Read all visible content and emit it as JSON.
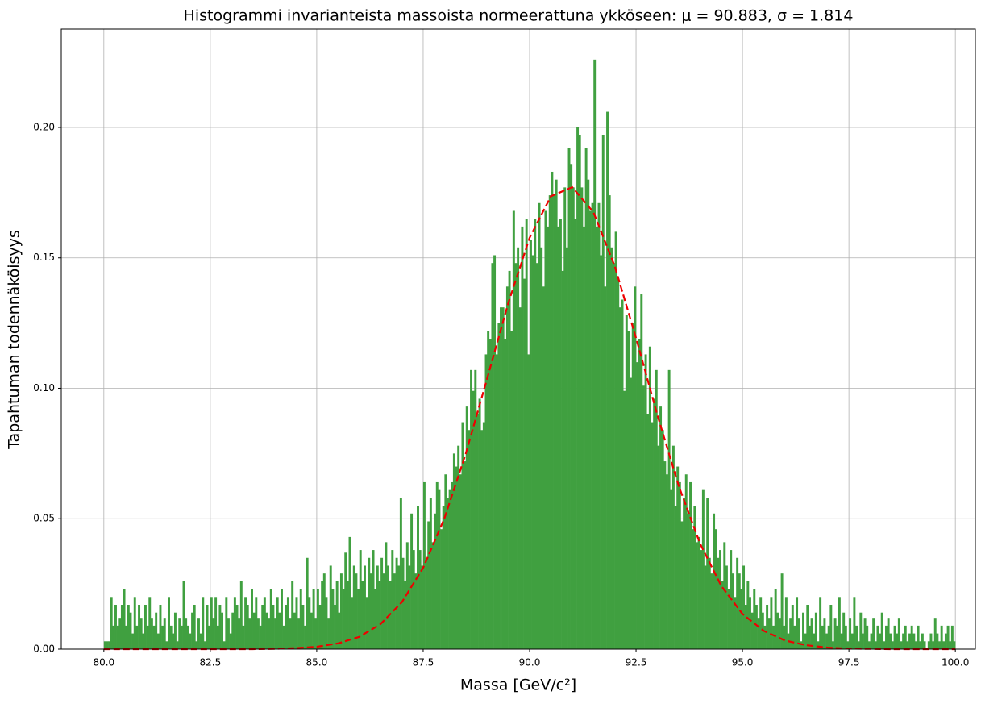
{
  "chart_data": {
    "type": "histogram",
    "title": "Histogrammi invarianteista massoista normeerattuna ykköseen: μ = 90.883, σ = 1.814",
    "xlabel": "Massa [GeV/c²]",
    "ylabel": "Tapahtuman todennäköisyys",
    "color": "#40a040",
    "grid": true,
    "xlim": [
      79.0,
      100.47
    ],
    "ylim": [
      0,
      0.2377
    ],
    "xticks": [
      {
        "value": 80,
        "label": "80.0"
      },
      {
        "value": 82.5,
        "label": "82.5"
      },
      {
        "value": 85,
        "label": "85.0"
      },
      {
        "value": 87.5,
        "label": "87.5"
      },
      {
        "value": 90,
        "label": "90.0"
      },
      {
        "value": 92.5,
        "label": "92.5"
      },
      {
        "value": 95,
        "label": "95.0"
      },
      {
        "value": 97.5,
        "label": "97.5"
      },
      {
        "value": 100,
        "label": "100.0"
      }
    ],
    "yticks": [
      {
        "value": 0,
        "label": "0.00"
      },
      {
        "value": 0.05,
        "label": "0.05"
      },
      {
        "value": 0.1,
        "label": "0.10"
      },
      {
        "value": 0.15,
        "label": "0.15"
      },
      {
        "value": 0.2,
        "label": "0.20"
      }
    ],
    "bins": [
      80,
      80.05,
      80.1,
      80.15,
      80.2,
      80.25,
      80.3,
      80.35,
      80.4,
      80.45,
      80.5,
      80.55,
      80.6,
      80.65,
      80.7,
      80.75,
      80.8,
      80.85,
      80.9,
      80.95,
      81,
      81.05,
      81.1,
      81.15,
      81.2,
      81.25,
      81.3,
      81.35,
      81.4,
      81.45,
      81.5,
      81.55,
      81.6,
      81.65,
      81.7,
      81.75,
      81.8,
      81.85,
      81.9,
      81.95,
      82,
      82.05,
      82.1,
      82.15,
      82.2,
      82.25,
      82.3,
      82.35,
      82.4,
      82.45,
      82.5,
      82.55,
      82.6,
      82.65,
      82.7,
      82.75,
      82.8,
      82.85,
      82.9,
      82.95,
      83,
      83.05,
      83.1,
      83.15,
      83.2,
      83.25,
      83.3,
      83.35,
      83.4,
      83.45,
      83.5,
      83.55,
      83.6,
      83.65,
      83.7,
      83.75,
      83.8,
      83.85,
      83.9,
      83.95,
      84,
      84.05,
      84.1,
      84.15,
      84.2,
      84.25,
      84.3,
      84.35,
      84.4,
      84.45,
      84.5,
      84.55,
      84.6,
      84.65,
      84.7,
      84.75,
      84.8,
      84.85,
      84.9,
      84.95,
      85,
      85.05,
      85.1,
      85.15,
      85.2,
      85.25,
      85.3,
      85.35,
      85.4,
      85.45,
      85.5,
      85.55,
      85.6,
      85.65,
      85.7,
      85.75,
      85.8,
      85.85,
      85.9,
      85.95,
      86,
      86.05,
      86.1,
      86.15,
      86.2,
      86.25,
      86.3,
      86.35,
      86.4,
      86.45,
      86.5,
      86.55,
      86.6,
      86.65,
      86.7,
      86.75,
      86.8,
      86.85,
      86.9,
      86.95,
      87,
      87.05,
      87.1,
      87.15,
      87.2,
      87.25,
      87.3,
      87.35,
      87.4,
      87.45,
      87.5,
      87.55,
      87.6,
      87.65,
      87.7,
      87.75,
      87.8,
      87.85,
      87.9,
      87.95,
      88,
      88.05,
      88.1,
      88.15,
      88.2,
      88.25,
      88.3,
      88.35,
      88.4,
      88.45,
      88.5,
      88.55,
      88.6,
      88.65,
      88.7,
      88.75,
      88.8,
      88.85,
      88.9,
      88.95,
      89,
      89.05,
      89.1,
      89.15,
      89.2,
      89.25,
      89.3,
      89.35,
      89.4,
      89.45,
      89.5,
      89.55,
      89.6,
      89.65,
      89.7,
      89.75,
      89.8,
      89.85,
      89.9,
      89.95,
      90,
      90.05,
      90.1,
      90.15,
      90.2,
      90.25,
      90.3,
      90.35,
      90.4,
      90.45,
      90.5,
      90.55,
      90.6,
      90.65,
      90.7,
      90.75,
      90.8,
      90.85,
      90.9,
      90.95,
      91,
      91.05,
      91.1,
      91.15,
      91.2,
      91.25,
      91.3,
      91.35,
      91.4,
      91.45,
      91.5,
      91.55,
      91.6,
      91.65,
      91.7,
      91.75,
      91.8,
      91.85,
      91.9,
      91.95,
      92,
      92.05,
      92.1,
      92.15,
      92.2,
      92.25,
      92.3,
      92.35,
      92.4,
      92.45,
      92.5,
      92.55,
      92.6,
      92.65,
      92.7,
      92.75,
      92.8,
      92.85,
      92.9,
      92.95,
      93,
      93.05,
      93.1,
      93.15,
      93.2,
      93.25,
      93.3,
      93.35,
      93.4,
      93.45,
      93.5,
      93.55,
      93.6,
      93.65,
      93.7,
      93.75,
      93.8,
      93.85,
      93.9,
      93.95,
      94,
      94.05,
      94.1,
      94.15,
      94.2,
      94.25,
      94.3,
      94.35,
      94.4,
      94.45,
      94.5,
      94.55,
      94.6,
      94.65,
      94.7,
      94.75,
      94.8,
      94.85,
      94.9,
      94.95,
      95,
      95.05,
      95.1,
      95.15,
      95.2,
      95.25,
      95.3,
      95.35,
      95.4,
      95.45,
      95.5,
      95.55,
      95.6,
      95.65,
      95.7,
      95.75,
      95.8,
      95.85,
      95.9,
      95.95,
      96,
      96.05,
      96.1,
      96.15,
      96.2,
      96.25,
      96.3,
      96.35,
      96.4,
      96.45,
      96.5,
      96.55,
      96.6,
      96.65,
      96.7,
      96.75,
      96.8,
      96.85,
      96.9,
      96.95,
      97,
      97.05,
      97.1,
      97.15,
      97.2,
      97.25,
      97.3,
      97.35,
      97.4,
      97.45,
      97.5,
      97.55,
      97.6,
      97.65,
      97.7,
      97.75,
      97.8,
      97.85,
      97.9,
      97.95,
      98,
      98.05,
      98.1,
      98.15,
      98.2,
      98.25,
      98.3,
      98.35,
      98.4,
      98.45,
      98.5,
      98.55,
      98.6,
      98.65,
      98.7,
      98.75,
      98.8,
      98.85,
      98.9,
      98.95,
      99,
      99.05,
      99.1,
      99.15,
      99.2,
      99.25,
      99.3,
      99.35,
      99.4,
      99.45,
      99.5,
      99.55,
      99.6,
      99.65,
      99.7,
      99.75,
      99.8,
      99.85,
      99.9,
      99.95,
      100
    ],
    "values": [
      0.003,
      0.003,
      0.003,
      0.02,
      0.009,
      0.017,
      0.009,
      0.012,
      0.017,
      0.023,
      0.009,
      0.017,
      0.014,
      0.006,
      0.02,
      0.009,
      0.017,
      0.012,
      0.006,
      0.017,
      0.009,
      0.02,
      0.012,
      0.009,
      0.014,
      0.006,
      0.017,
      0.009,
      0.012,
      0.003,
      0.02,
      0.009,
      0.006,
      0.014,
      0.003,
      0.012,
      0.009,
      0.026,
      0.012,
      0.009,
      0.006,
      0.014,
      0.017,
      0.003,
      0.012,
      0.006,
      0.02,
      0.003,
      0.017,
      0.009,
      0.02,
      0.012,
      0.02,
      0.009,
      0.017,
      0.014,
      0.003,
      0.02,
      0.012,
      0.006,
      0.014,
      0.02,
      0.017,
      0.012,
      0.026,
      0.009,
      0.02,
      0.017,
      0.012,
      0.023,
      0.014,
      0.02,
      0.012,
      0.009,
      0.017,
      0.02,
      0.014,
      0.012,
      0.023,
      0.017,
      0.012,
      0.02,
      0.014,
      0.023,
      0.009,
      0.017,
      0.02,
      0.012,
      0.026,
      0.014,
      0.02,
      0.012,
      0.023,
      0.017,
      0.009,
      0.035,
      0.02,
      0.014,
      0.023,
      0.012,
      0.023,
      0.017,
      0.026,
      0.029,
      0.02,
      0.012,
      0.032,
      0.023,
      0.017,
      0.026,
      0.014,
      0.029,
      0.023,
      0.037,
      0.026,
      0.043,
      0.02,
      0.032,
      0.029,
      0.023,
      0.038,
      0.026,
      0.032,
      0.02,
      0.035,
      0.029,
      0.038,
      0.023,
      0.032,
      0.026,
      0.035,
      0.029,
      0.041,
      0.032,
      0.026,
      0.038,
      0.029,
      0.035,
      0.032,
      0.058,
      0.035,
      0.026,
      0.041,
      0.032,
      0.052,
      0.038,
      0.029,
      0.055,
      0.038,
      0.032,
      0.064,
      0.035,
      0.049,
      0.058,
      0.041,
      0.052,
      0.064,
      0.061,
      0.046,
      0.055,
      0.067,
      0.058,
      0.061,
      0.064,
      0.075,
      0.07,
      0.078,
      0.067,
      0.087,
      0.072,
      0.093,
      0.084,
      0.107,
      0.099,
      0.107,
      0.09,
      0.096,
      0.084,
      0.087,
      0.113,
      0.122,
      0.119,
      0.148,
      0.151,
      0.113,
      0.125,
      0.131,
      0.131,
      0.119,
      0.139,
      0.145,
      0.122,
      0.168,
      0.148,
      0.154,
      0.131,
      0.162,
      0.142,
      0.165,
      0.113,
      0.157,
      0.151,
      0.165,
      0.148,
      0.171,
      0.154,
      0.139,
      0.168,
      0.162,
      0.174,
      0.183,
      0.174,
      0.18,
      0.162,
      0.165,
      0.145,
      0.177,
      0.154,
      0.192,
      0.186,
      0.177,
      0.165,
      0.2,
      0.197,
      0.177,
      0.162,
      0.192,
      0.18,
      0.168,
      0.171,
      0.226,
      0.162,
      0.171,
      0.151,
      0.197,
      0.139,
      0.206,
      0.174,
      0.154,
      0.148,
      0.16,
      0.142,
      0.131,
      0.134,
      0.099,
      0.128,
      0.122,
      0.104,
      0.125,
      0.139,
      0.11,
      0.119,
      0.136,
      0.101,
      0.113,
      0.09,
      0.116,
      0.087,
      0.096,
      0.107,
      0.078,
      0.093,
      0.084,
      0.072,
      0.067,
      0.107,
      0.061,
      0.078,
      0.055,
      0.07,
      0.064,
      0.049,
      0.058,
      0.067,
      0.052,
      0.064,
      0.046,
      0.055,
      0.041,
      0.043,
      0.038,
      0.061,
      0.032,
      0.058,
      0.035,
      0.029,
      0.052,
      0.046,
      0.035,
      0.038,
      0.026,
      0.041,
      0.032,
      0.023,
      0.038,
      0.029,
      0.02,
      0.035,
      0.029,
      0.023,
      0.032,
      0.017,
      0.026,
      0.02,
      0.014,
      0.023,
      0.017,
      0.012,
      0.02,
      0.014,
      0.009,
      0.017,
      0.012,
      0.02,
      0.009,
      0.023,
      0.014,
      0.012,
      0.029,
      0.009,
      0.02,
      0.006,
      0.012,
      0.017,
      0.009,
      0.02,
      0.012,
      0.003,
      0.014,
      0.006,
      0.017,
      0.009,
      0.012,
      0.006,
      0.014,
      0.003,
      0.02,
      0.009,
      0.012,
      0.006,
      0.009,
      0.017,
      0.003,
      0.012,
      0.009,
      0.02,
      0.006,
      0.014,
      0.009,
      0.003,
      0.012,
      0.006,
      0.02,
      0.009,
      0.003,
      0.014,
      0.006,
      0.012,
      0.009,
      0.003,
      0.006,
      0.012,
      0.003,
      0.009,
      0.006,
      0.014,
      0.003,
      0.009,
      0.012,
      0.006,
      0.003,
      0.009,
      0.006,
      0.012,
      0.003,
      0.006,
      0.009,
      0.003,
      0.006,
      0.009,
      0.006,
      0.003,
      0.009,
      0.003,
      0.006,
      0.003,
      0.0,
      0.003,
      0.006,
      0.003,
      0.012,
      0.006,
      0.003,
      0.009,
      0.003,
      0.006,
      0.009,
      0.003,
      0.009,
      0.003
    ],
    "fit": {
      "type": "line",
      "color": "#ee0000",
      "dashed": true,
      "x": [
        80,
        80.5,
        81,
        81.5,
        82,
        82.5,
        83,
        83.5,
        84,
        84.5,
        85,
        85.5,
        86,
        86.5,
        87,
        87.5,
        88,
        88.5,
        89,
        89.5,
        90,
        90.5,
        91,
        91.5,
        92,
        92.5,
        93,
        93.5,
        94,
        94.5,
        95,
        95.5,
        96,
        96.5,
        97,
        97.5,
        98,
        98.5,
        99,
        99.5,
        100
      ],
      "values": [
        0,
        0,
        0,
        0,
        0,
        0,
        0,
        0,
        0.0001,
        0.0004,
        0.0009,
        0.0022,
        0.0047,
        0.0096,
        0.018,
        0.0312,
        0.0502,
        0.0749,
        0.1036,
        0.1327,
        0.1577,
        0.1736,
        0.1771,
        0.1675,
        0.1468,
        0.1193,
        0.0898,
        0.0627,
        0.0406,
        0.0243,
        0.0135,
        0.007,
        0.0033,
        0.0015,
        0.0006,
        0.0002,
        0.0001,
        0,
        0,
        0,
        0
      ]
    }
  }
}
